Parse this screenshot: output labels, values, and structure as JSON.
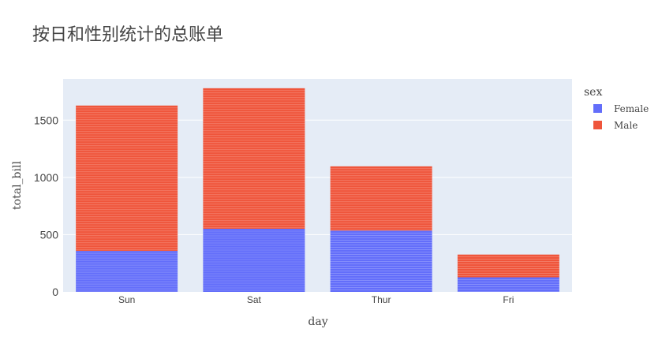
{
  "chart_data": {
    "type": "bar",
    "barmode": "stack",
    "title": "按日和性别统计的总账单",
    "xlabel": "day",
    "ylabel": "total_bill",
    "categories": [
      "Sun",
      "Sat",
      "Thur",
      "Fri"
    ],
    "yticks": [
      0,
      500,
      1000,
      1500
    ],
    "ylim": [
      0,
      1860
    ],
    "grid": true,
    "legend": {
      "title": "sex",
      "placement": "right",
      "entries": [
        "Female",
        "Male"
      ]
    },
    "series": [
      {
        "name": "Female",
        "color": "#636efa",
        "values": [
          357.7,
          551.05,
          534.89,
          127.31
        ]
      },
      {
        "name": "Male",
        "color": "#ef553b",
        "values": [
          1269.46,
          1227.35,
          561.44,
          198.57
        ]
      }
    ],
    "plot_background": "#e5ecf6"
  }
}
